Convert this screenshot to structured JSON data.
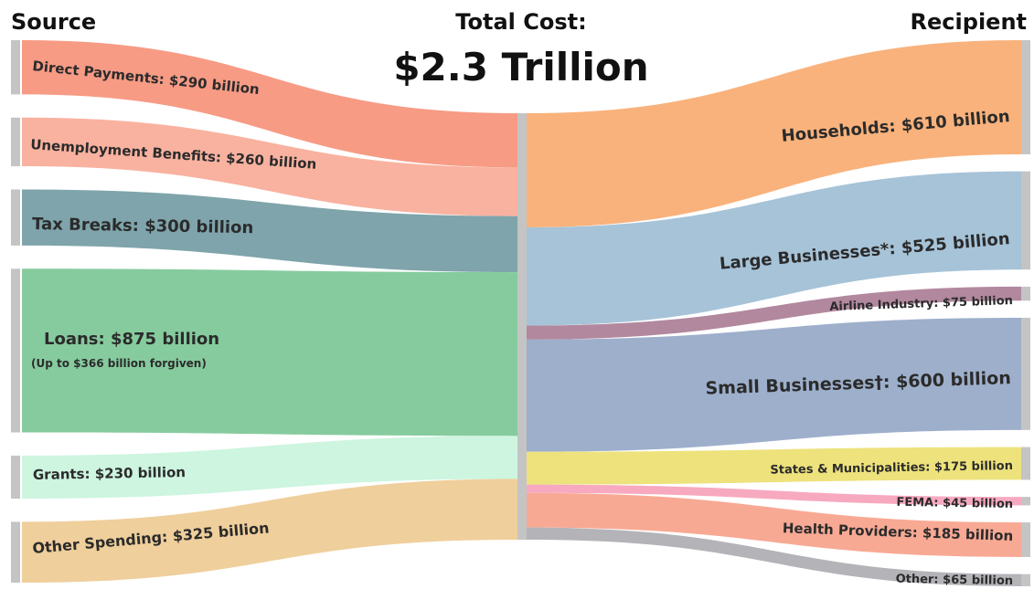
{
  "chart_data": {
    "type": "sankey",
    "title": "Total Cost:",
    "total_label": "$2.3 Trillion",
    "source_header": "Source",
    "recipient_header": "Recipient",
    "units": "billion USD",
    "sources": [
      {
        "id": "direct",
        "label": "Direct Payments: $290 billion",
        "value": 290,
        "color": "#f79b85"
      },
      {
        "id": "unemp",
        "label": "Unemployment Benefits: $260 billion",
        "value": 260,
        "color": "#f9b2a0"
      },
      {
        "id": "tax",
        "label": "Tax Breaks: $300 billion",
        "value": 300,
        "color": "#7fa4ab"
      },
      {
        "id": "loans",
        "label": "Loans: $875 billion",
        "sublabel": "(Up to $366 billion forgiven)",
        "value": 875,
        "color": "#86cb9e"
      },
      {
        "id": "grants",
        "label": "Grants: $230 billion",
        "value": 230,
        "color": "#cdf5e0"
      },
      {
        "id": "other_sp",
        "label": "Other Spending: $325 billion",
        "value": 325,
        "color": "#efcf9b"
      }
    ],
    "recipients": [
      {
        "id": "house",
        "label": "Households: $610 billion",
        "value": 610,
        "color": "#f9b27c"
      },
      {
        "id": "large",
        "label": "Large Businesses*: $525 billion",
        "value": 525,
        "color": "#a6c3d8"
      },
      {
        "id": "airline",
        "label": "Airline Industry: $75 billion",
        "value": 75,
        "color": "#b2889f"
      },
      {
        "id": "small",
        "label": "Small Businesses†: $600 billion",
        "value": 600,
        "color": "#9dafcb"
      },
      {
        "id": "states",
        "label": "States & Municipalities: $175 billion",
        "value": 175,
        "color": "#ede27c"
      },
      {
        "id": "fema",
        "label": "FEMA: $45 billion",
        "value": 45,
        "color": "#f7a9c0"
      },
      {
        "id": "health",
        "label": "Health Providers: $185 billion",
        "value": 185,
        "color": "#f8a994"
      },
      {
        "id": "other_r",
        "label": "Other: $65 billion",
        "value": 65,
        "color": "#b3b3b8"
      }
    ]
  }
}
